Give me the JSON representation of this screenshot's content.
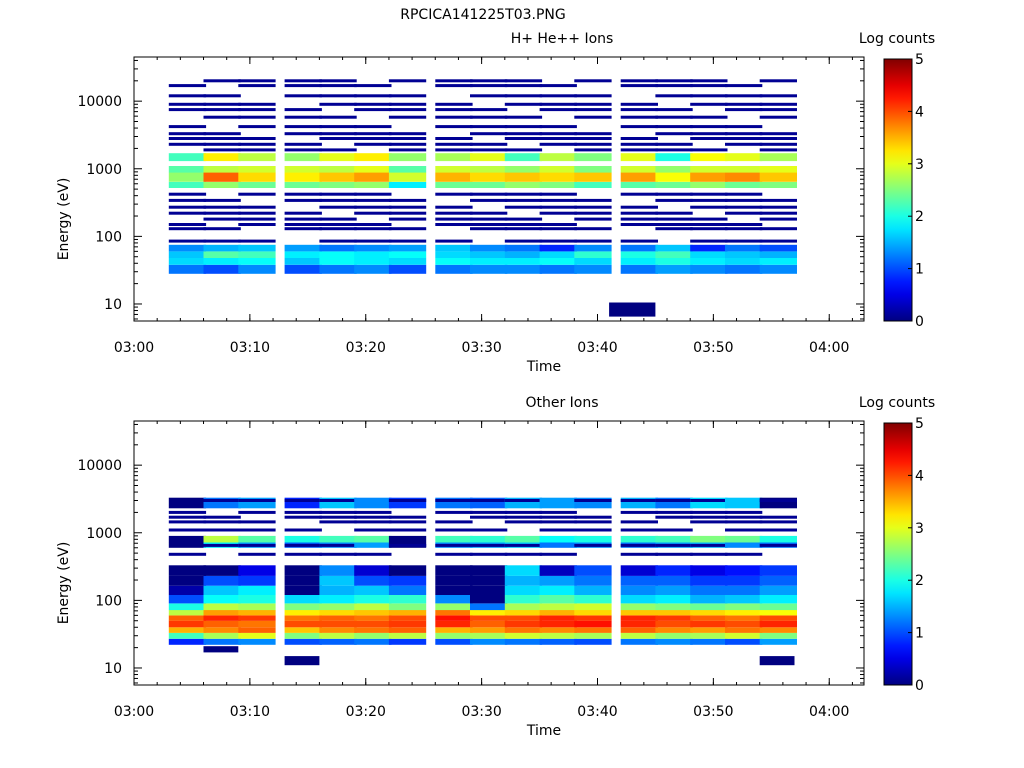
{
  "page": {
    "filename": "RPCICA141225T03.PNG"
  },
  "colors": {
    "background": "#ffffff",
    "axis": "#000000",
    "colormap": "jet"
  },
  "chart_data": [
    {
      "type": "heatmap",
      "title": "H+ He++ Ions",
      "xlabel": "Time",
      "ylabel": "Energy (eV)",
      "colorbar_label": "Log counts",
      "xlim": [
        "03:00",
        "04:03"
      ],
      "ylim": [
        5.6,
        45000
      ],
      "yscale": "log",
      "xticks": [
        "03:00",
        "03:10",
        "03:20",
        "03:30",
        "03:40",
        "03:50",
        "04:00"
      ],
      "yticks": [
        "10",
        "100",
        "1000",
        "10000"
      ],
      "colorbar_ticks": [
        "0",
        "1",
        "2",
        "3",
        "4",
        "5"
      ],
      "colorbar_range": [
        0,
        5
      ],
      "columns_start": [
        "03:03",
        "03:06",
        "03:09",
        "03:13",
        "03:16",
        "03:19",
        "03:22",
        "03:26",
        "03:29",
        "03:32",
        "03:35",
        "03:38",
        "03:42",
        "03:45",
        "03:48",
        "03:51",
        "03:54"
      ],
      "column_width_min": 3.22,
      "bands": [
        {
          "e_low": 28,
          "e_high": 38,
          "level": [
            1.2,
            1.0,
            1.3,
            1.0,
            1.2,
            1.3,
            1.0,
            1.2,
            1.3,
            1.3,
            1.2,
            1.3,
            1.2,
            1.4,
            1.3,
            1.2,
            1.3
          ]
        },
        {
          "e_low": 38,
          "e_high": 48,
          "level": [
            1.7,
            1.8,
            1.9,
            1.6,
            1.9,
            1.8,
            1.7,
            1.9,
            1.8,
            1.8,
            1.9,
            1.7,
            1.8,
            2.0,
            1.8,
            1.7,
            1.8
          ]
        },
        {
          "e_low": 48,
          "e_high": 60,
          "level": [
            1.6,
            2.3,
            2.2,
            1.8,
            1.9,
            1.8,
            1.9,
            1.7,
            1.6,
            1.5,
            1.7,
            2.1,
            2.0,
            2.2,
            1.7,
            1.6,
            1.5
          ]
        },
        {
          "e_low": 60,
          "e_high": 75,
          "level": [
            1.3,
            1.5,
            1.6,
            1.4,
            1.2,
            1.3,
            1.4,
            1.6,
            1.3,
            1.2,
            0.8,
            1.3,
            1.2,
            1.6,
            0.8,
            1.2,
            1.0
          ]
        },
        {
          "e_low": 520,
          "e_high": 640,
          "level": [
            2.2,
            2.6,
            2.4,
            2.4,
            2.5,
            2.6,
            1.8,
            2.4,
            2.4,
            2.6,
            2.5,
            2.2,
            2.3,
            2.4,
            2.6,
            2.4,
            2.5
          ]
        },
        {
          "e_low": 640,
          "e_high": 880,
          "level": [
            2.6,
            3.9,
            3.3,
            3.2,
            3.4,
            3.6,
            2.9,
            3.5,
            3.3,
            3.4,
            3.3,
            3.4,
            3.6,
            3.1,
            3.6,
            3.7,
            3.4
          ]
        },
        {
          "e_low": 880,
          "e_high": 1100,
          "level": [
            2.3,
            2.8,
            2.9,
            2.9,
            2.8,
            3.0,
            2.3,
            2.9,
            2.8,
            2.6,
            2.9,
            2.5,
            2.9,
            2.6,
            2.9,
            2.9,
            3.0
          ]
        },
        {
          "e_low": 1300,
          "e_high": 1700,
          "level": [
            2.2,
            3.2,
            2.8,
            2.6,
            3.0,
            3.2,
            2.6,
            2.7,
            3.0,
            2.2,
            2.8,
            2.5,
            3.0,
            2.0,
            3.1,
            3.0,
            2.7
          ]
        }
      ],
      "sparse_lines_energies": [
        20000,
        17000,
        12000,
        9000,
        7500,
        5800,
        4200,
        3300,
        2800,
        2300,
        1900,
        420,
        340,
        270,
        220,
        180,
        150,
        130,
        85
      ],
      "sparse_level": 0.1,
      "extra_blocks": [
        {
          "time_start": "03:41",
          "time_end": "03:45",
          "e_low": 6.5,
          "e_high": 10.5,
          "level": 0.0
        }
      ]
    },
    {
      "type": "heatmap",
      "title": "Other Ions",
      "xlabel": "Time",
      "ylabel": "Energy (eV)",
      "colorbar_label": "Log counts",
      "xlim": [
        "03:00",
        "04:03"
      ],
      "ylim": [
        5.6,
        45000
      ],
      "yscale": "log",
      "xticks": [
        "03:00",
        "03:10",
        "03:20",
        "03:30",
        "03:40",
        "03:50",
        "04:00"
      ],
      "yticks": [
        "10",
        "100",
        "1000",
        "10000"
      ],
      "colorbar_ticks": [
        "0",
        "1",
        "2",
        "3",
        "4",
        "5"
      ],
      "colorbar_range": [
        0,
        5
      ],
      "columns_start": [
        "03:03",
        "03:06",
        "03:09",
        "03:13",
        "03:16",
        "03:19",
        "03:22",
        "03:26",
        "03:29",
        "03:32",
        "03:35",
        "03:38",
        "03:42",
        "03:45",
        "03:48",
        "03:51",
        "03:54"
      ],
      "column_width_min": 3.22,
      "bands": [
        {
          "e_low": 22,
          "e_high": 27,
          "level": [
            0.8,
            1.2,
            1.3,
            1.0,
            1.1,
            1.2,
            0.9,
            1.0,
            1.3,
            1.2,
            1.1,
            1.0,
            1.2,
            1.3,
            1.2,
            1.0,
            1.4
          ]
        },
        {
          "e_low": 27,
          "e_high": 33,
          "level": [
            2.2,
            2.7,
            3.0,
            2.5,
            2.8,
            2.6,
            2.8,
            2.6,
            2.7,
            2.9,
            2.8,
            2.7,
            2.8,
            2.6,
            2.7,
            2.9,
            2.5
          ]
        },
        {
          "e_low": 33,
          "e_high": 40,
          "level": [
            3.5,
            3.7,
            3.9,
            3.4,
            3.7,
            3.8,
            3.9,
            3.5,
            3.6,
            3.8,
            3.7,
            3.8,
            3.9,
            3.7,
            3.6,
            3.8,
            3.7
          ]
        },
        {
          "e_low": 40,
          "e_high": 50,
          "level": [
            4.1,
            3.9,
            3.8,
            4.0,
            4.0,
            4.0,
            4.1,
            4.2,
            3.9,
            4.1,
            4.2,
            4.3,
            4.2,
            4.0,
            4.1,
            4.0,
            4.2
          ]
        },
        {
          "e_low": 50,
          "e_high": 60,
          "level": [
            3.9,
            4.2,
            4.1,
            3.8,
            3.9,
            3.8,
            4.0,
            4.3,
            4.0,
            4.0,
            4.2,
            4.1,
            4.2,
            4.1,
            3.9,
            3.8,
            4.0
          ]
        },
        {
          "e_low": 60,
          "e_high": 72,
          "level": [
            2.8,
            3.6,
            3.5,
            3.2,
            3.3,
            3.4,
            3.5,
            3.8,
            3.2,
            3.3,
            3.5,
            3.3,
            3.4,
            3.4,
            3.3,
            3.2,
            3.1
          ]
        },
        {
          "e_low": 72,
          "e_high": 90,
          "level": [
            2.0,
            2.8,
            2.7,
            2.5,
            2.6,
            2.8,
            2.5,
            2.6,
            1.2,
            2.7,
            2.8,
            2.9,
            2.6,
            2.5,
            2.4,
            2.5,
            2.4
          ]
        },
        {
          "e_low": 90,
          "e_high": 120,
          "level": [
            1.0,
            1.9,
            2.0,
            1.7,
            1.8,
            2.0,
            2.1,
            1.3,
            0.0,
            2.1,
            2.3,
            2.1,
            1.7,
            1.8,
            1.5,
            1.6,
            1.8
          ]
        },
        {
          "e_low": 120,
          "e_high": 165,
          "level": [
            0.2,
            1.6,
            1.8,
            0.0,
            1.5,
            1.6,
            1.2,
            0.0,
            0.0,
            1.7,
            1.8,
            1.5,
            1.3,
            1.4,
            1.2,
            1.2,
            1.4
          ]
        },
        {
          "e_low": 165,
          "e_high": 230,
          "level": [
            0.0,
            1.0,
            0.9,
            0.0,
            1.6,
            1.0,
            0.9,
            0.0,
            0.0,
            1.5,
            1.4,
            1.2,
            1.1,
            1.1,
            0.9,
            0.9,
            1.1
          ]
        },
        {
          "e_low": 230,
          "e_high": 330,
          "level": [
            0.0,
            0.0,
            0.5,
            0.0,
            1.3,
            0.4,
            0.0,
            0.0,
            0.0,
            1.7,
            0.3,
            1.0,
            0.4,
            0.8,
            0.5,
            0.7,
            0.9
          ]
        },
        {
          "e_low": 600,
          "e_high": 720,
          "level": [
            0.0,
            1.8,
            1.4,
            1.1,
            1.3,
            1.4,
            0.0,
            1.3,
            1.4,
            1.6,
            1.2,
            1.3,
            1.2,
            1.4,
            1.5,
            1.3,
            1.2
          ]
        },
        {
          "e_low": 720,
          "e_high": 900,
          "level": [
            0.0,
            2.8,
            2.3,
            2.0,
            2.2,
            2.3,
            0.0,
            2.2,
            2.1,
            2.3,
            1.9,
            2.0,
            2.1,
            2.2,
            2.5,
            2.4,
            2.0
          ]
        },
        {
          "e_low": 2300,
          "e_high": 3300,
          "level": [
            0.0,
            1.2,
            1.4,
            0.8,
            1.6,
            1.3,
            0.9,
            1.2,
            1.1,
            1.5,
            1.4,
            1.3,
            1.5,
            1.2,
            1.7,
            1.6,
            0.0
          ]
        }
      ],
      "sparse_lines_energies": [
        3000,
        2000,
        1700,
        1450,
        1100,
        650,
        480
      ],
      "sparse_level": 0.1,
      "extra_blocks": [
        {
          "time_start": "03:13",
          "time_end": "03:16",
          "e_low": 11,
          "e_high": 15,
          "level": 0.0
        },
        {
          "time_start": "03:54",
          "time_end": "03:57",
          "e_low": 11,
          "e_high": 15,
          "level": 0.0
        },
        {
          "time_start": "03:06",
          "time_end": "03:09",
          "e_low": 17,
          "e_high": 21,
          "level": 0.0
        }
      ]
    }
  ]
}
